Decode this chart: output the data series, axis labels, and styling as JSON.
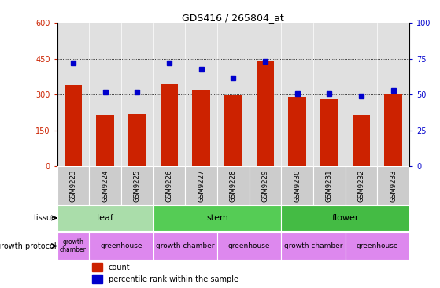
{
  "title": "GDS416 / 265804_at",
  "samples": [
    "GSM9223",
    "GSM9224",
    "GSM9225",
    "GSM9226",
    "GSM9227",
    "GSM9228",
    "GSM9229",
    "GSM9230",
    "GSM9231",
    "GSM9232",
    "GSM9233"
  ],
  "counts": [
    340,
    215,
    220,
    345,
    320,
    298,
    440,
    292,
    280,
    215,
    305
  ],
  "percentiles": [
    72,
    52,
    52,
    72,
    68,
    62,
    73,
    51,
    51,
    49,
    53
  ],
  "ylim_left": [
    0,
    600
  ],
  "ylim_right": [
    0,
    100
  ],
  "yticks_left": [
    0,
    150,
    300,
    450,
    600
  ],
  "yticks_right": [
    0,
    25,
    50,
    75,
    100
  ],
  "bar_color": "#cc2200",
  "dot_color": "#0000cc",
  "tissue_groups": [
    {
      "label": "leaf",
      "start": 0,
      "end": 3,
      "color": "#aaddaa"
    },
    {
      "label": "stem",
      "start": 3,
      "end": 7,
      "color": "#55cc55"
    },
    {
      "label": "flower",
      "start": 7,
      "end": 11,
      "color": "#44bb44"
    }
  ],
  "protocol_groups": [
    {
      "label": "growth\nchamber",
      "start": 0,
      "end": 1,
      "small": true
    },
    {
      "label": "greenhouse",
      "start": 1,
      "end": 3,
      "small": false
    },
    {
      "label": "growth chamber",
      "start": 3,
      "end": 5,
      "small": false
    },
    {
      "label": "greenhouse",
      "start": 5,
      "end": 7,
      "small": false
    },
    {
      "label": "growth chamber",
      "start": 7,
      "end": 9,
      "small": false
    },
    {
      "label": "greenhouse",
      "start": 9,
      "end": 11,
      "small": false
    }
  ],
  "tissue_label": "tissue",
  "protocol_label": "growth protocol",
  "legend_count_label": "count",
  "legend_pct_label": "percentile rank within the sample",
  "bg_color": "#ffffff",
  "plot_bg_color": "#e0e0e0",
  "sample_bg_color": "#cccccc",
  "tissue_leaf_color": "#aaddaa",
  "tissue_stem_color": "#55cc55",
  "tissue_flower_color": "#44bb44",
  "proto_color_light": "#dd88ee",
  "proto_color_dark": "#cc66cc",
  "axis_color_left": "#cc2200",
  "axis_color_right": "#0000cc"
}
